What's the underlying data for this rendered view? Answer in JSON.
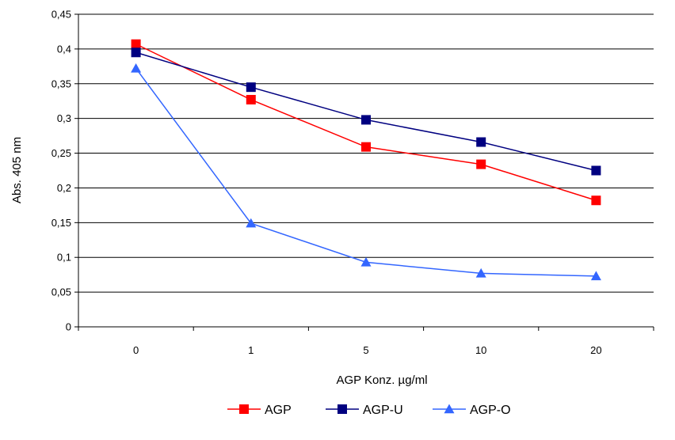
{
  "chart_data": {
    "type": "line",
    "title": "",
    "xlabel": "AGP Konz. µg/ml",
    "ylabel": "Abs. 405 nm",
    "categories": [
      "0",
      "1",
      "5",
      "10",
      "20"
    ],
    "ylim": [
      0,
      0.45
    ],
    "yticks": [
      "0",
      "0,05",
      "0,1",
      "0,15",
      "0,2",
      "0,25",
      "0,3",
      "0,35",
      "0,4",
      "0,45"
    ],
    "grid": true,
    "legend_position": "bottom",
    "series": [
      {
        "name": "AGP",
        "values": [
          0.407,
          0.327,
          0.259,
          0.234,
          0.182
        ],
        "color": "#FF0000",
        "marker": "square"
      },
      {
        "name": "AGP-U",
        "values": [
          0.395,
          0.345,
          0.298,
          0.266,
          0.225
        ],
        "color": "#000080",
        "marker": "square"
      },
      {
        "name": "AGP-O",
        "values": [
          0.372,
          0.149,
          0.093,
          0.077,
          0.073
        ],
        "color": "#3366FF",
        "marker": "triangle"
      }
    ]
  }
}
